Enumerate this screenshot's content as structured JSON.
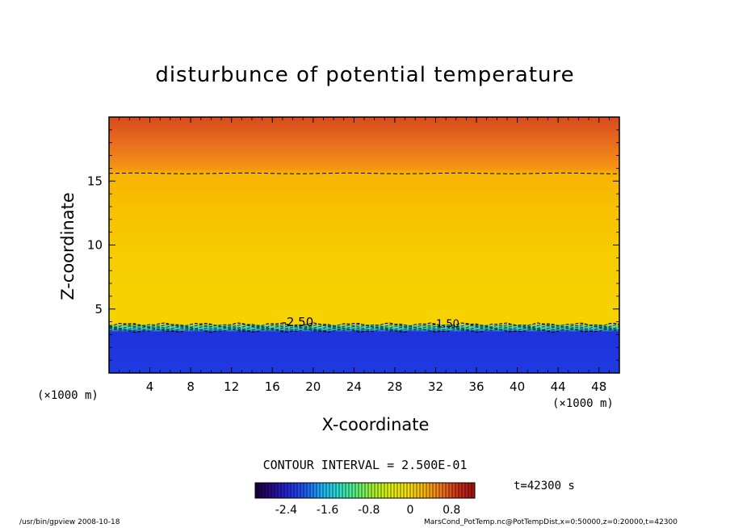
{
  "chart_data": {
    "type": "heatmap",
    "title": "disturbunce of potential temperature",
    "xlabel": "X-coordinate",
    "ylabel": "Z-coordinate",
    "x_unit_label": "(×1000 m)",
    "x_ticks": [
      4,
      8,
      12,
      16,
      20,
      24,
      28,
      32,
      36,
      40,
      44,
      48
    ],
    "y_ticks": [
      5,
      10,
      15
    ],
    "xlim": [
      0,
      50
    ],
    "ylim": [
      0,
      20
    ],
    "contour_interval_text": "CONTOUR INTERVAL = 2.500E-01",
    "time_text": "t=42300 s",
    "contour_labels": [
      "-2.50",
      "-1.50"
    ],
    "colorbar": {
      "tick_labels": [
        "-2.4",
        "-1.6",
        "-0.8",
        "0",
        "0.8"
      ],
      "tick_values": [
        -2.4,
        -1.6,
        -0.8,
        0,
        0.8
      ],
      "range": [
        -3.0,
        1.25
      ],
      "colors": [
        "#1a0033",
        "#2a0a8c",
        "#1f2bd9",
        "#1e5ef0",
        "#1fb4f5",
        "#2fe0c8",
        "#5af07a",
        "#a8f030",
        "#e0f000",
        "#f5e000",
        "#f8b800",
        "#f07820",
        "#c83018",
        "#a01010"
      ]
    },
    "profile": [
      {
        "z": 0,
        "value": -2.25
      },
      {
        "z": 3.2,
        "value": -2.3
      },
      {
        "z": 3.5,
        "value": -1.3
      },
      {
        "z": 3.8,
        "value": 0.05
      },
      {
        "z": 9,
        "value": 0.1
      },
      {
        "z": 13,
        "value": 0.2
      },
      {
        "z": 15.6,
        "value": 0.3
      },
      {
        "z": 16,
        "value": 0.45
      },
      {
        "z": 18,
        "value": 0.65
      },
      {
        "z": 20,
        "value": 0.8
      }
    ],
    "dashed_contour_z": 15.6
  },
  "footer": {
    "left": "/usr/bin/gpview   2008-10-18",
    "right": "MarsCond_PotTemp.nc@PotTempDist,x=0:50000,z=0:20000,t=42300"
  }
}
